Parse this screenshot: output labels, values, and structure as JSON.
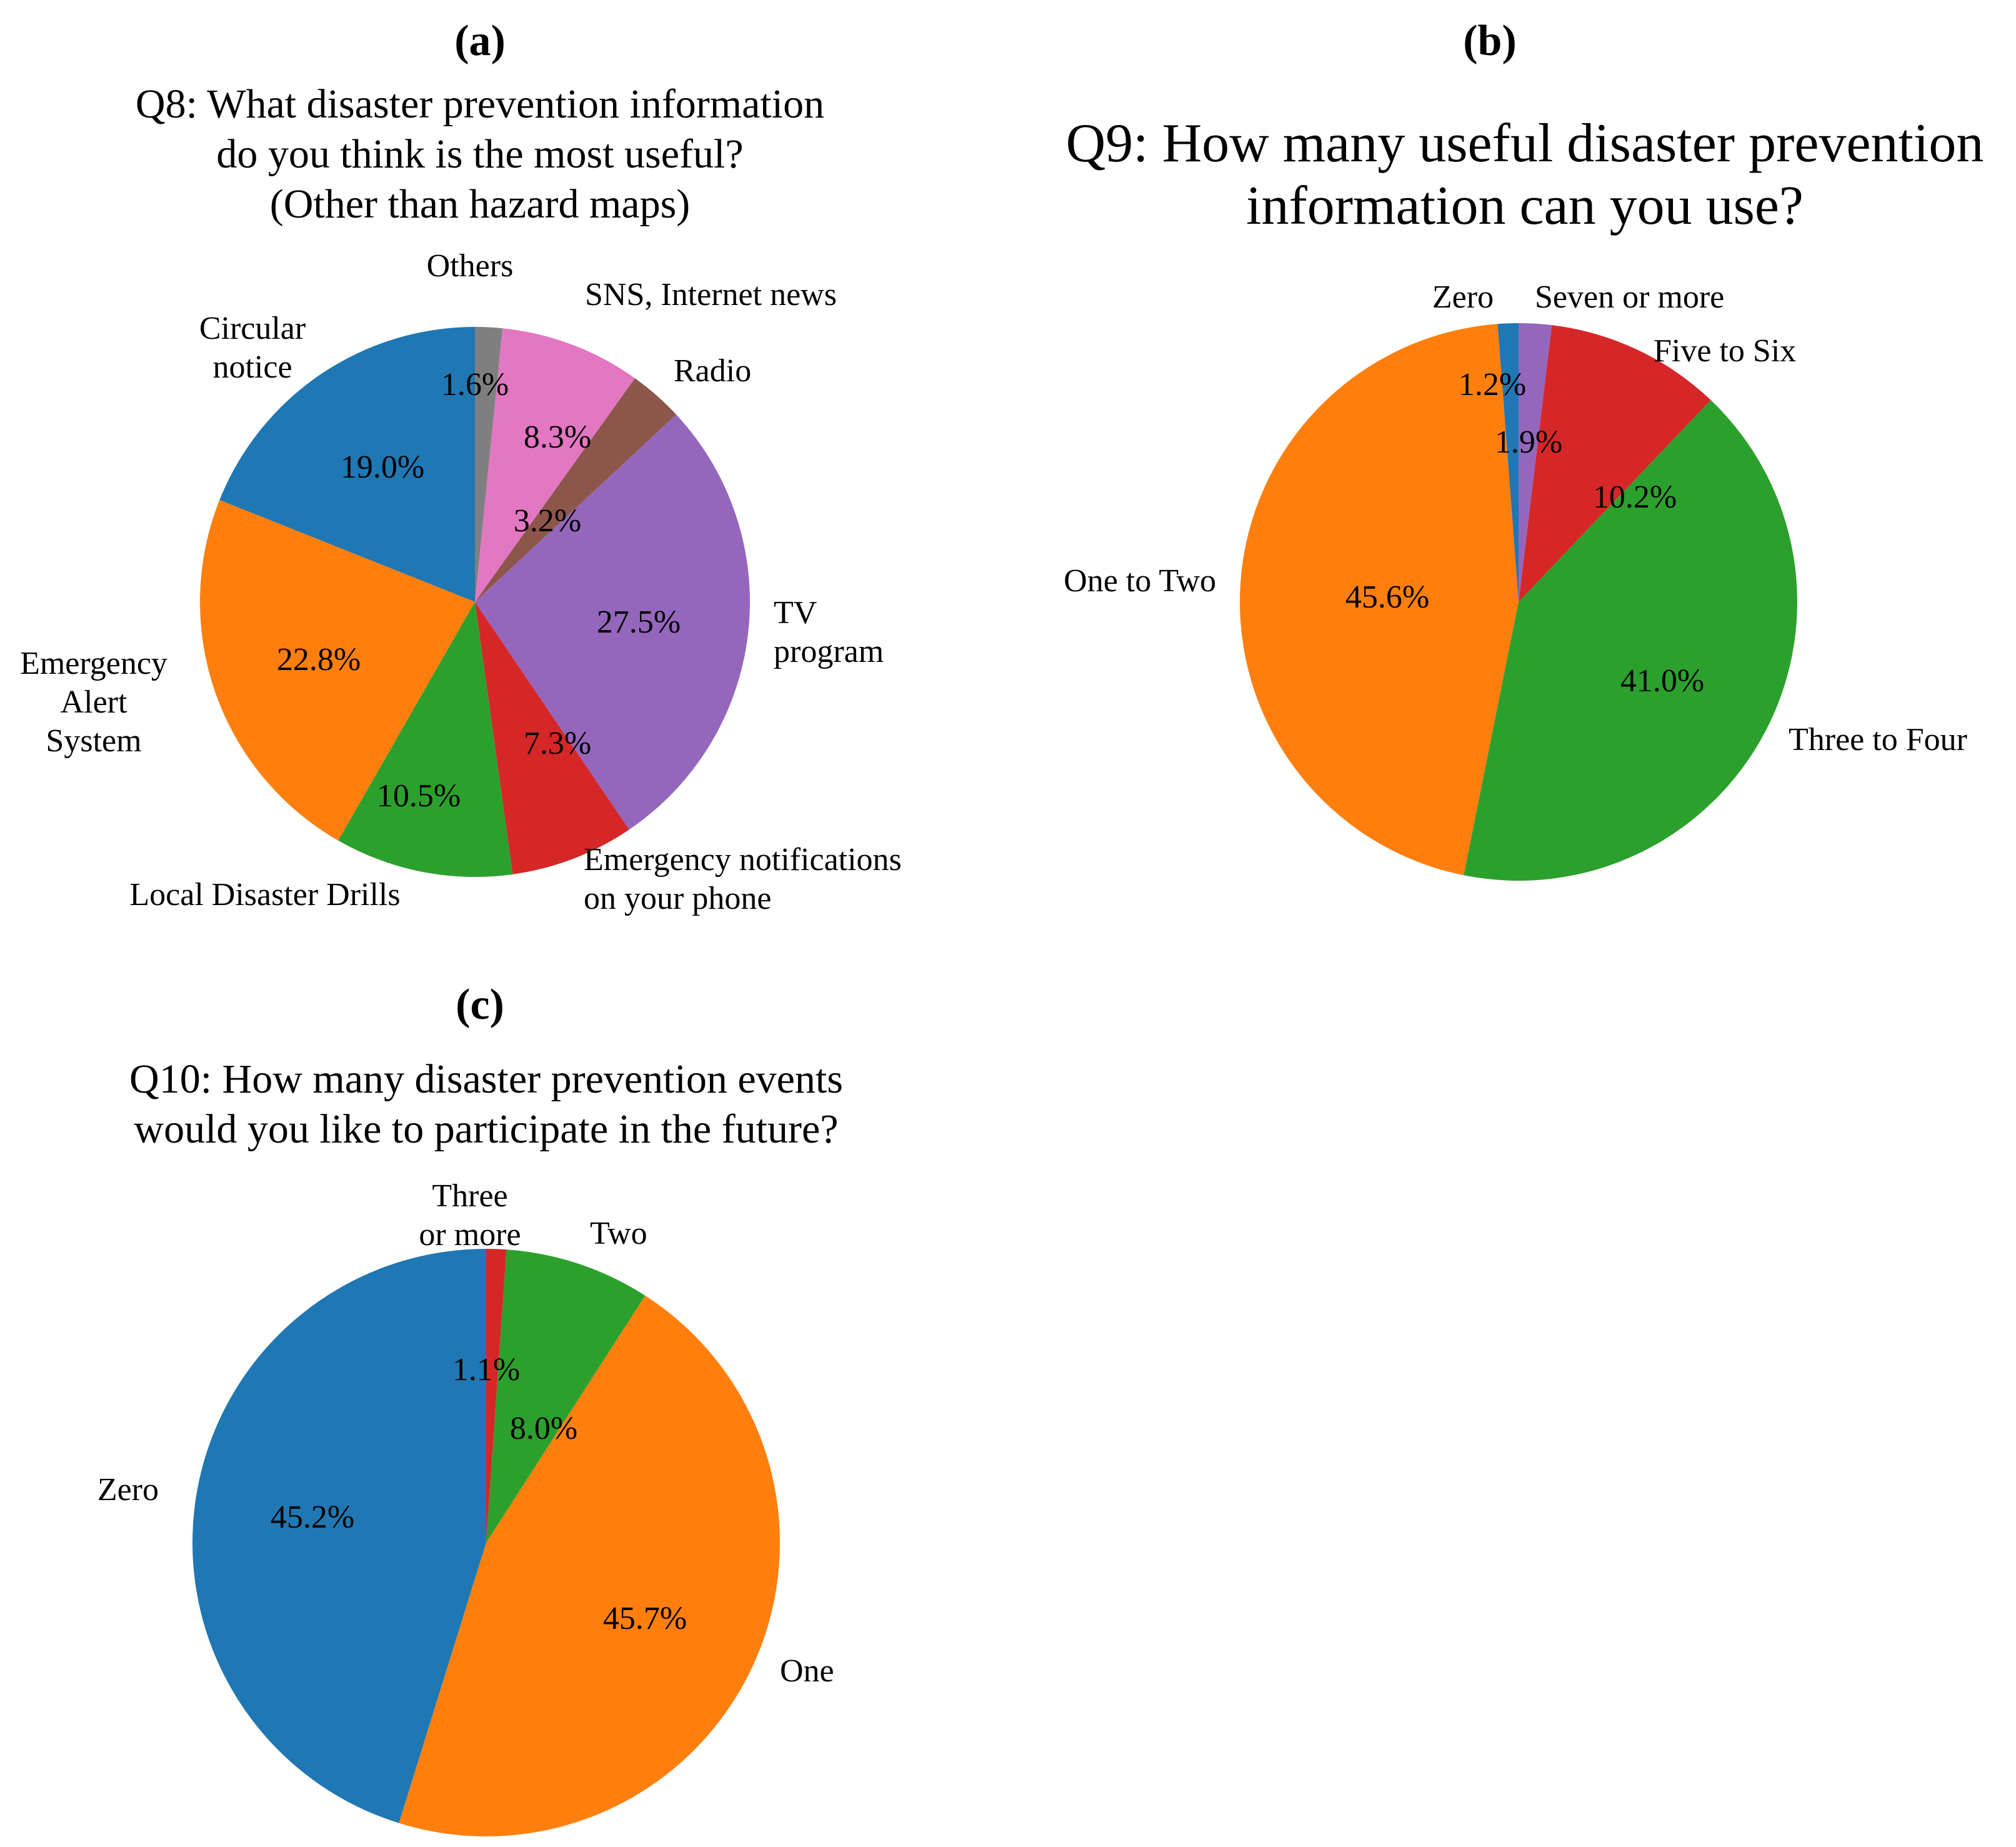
{
  "chart_data": [
    {
      "type": "pie",
      "panel": "(a)",
      "title_lines": [
        "Q8: What disaster prevention information",
        "do you think is the most useful?",
        "(Other than hazard maps)"
      ],
      "slices": [
        {
          "label_lines": [
            "Circular",
            "notice"
          ],
          "value": 19.0,
          "pct_label": "19.0%",
          "color": "#1f77b4"
        },
        {
          "label_lines": [
            "Emergency",
            "Alert",
            "System"
          ],
          "value": 22.8,
          "pct_label": "22.8%",
          "color": "#ff7f0e"
        },
        {
          "label_lines": [
            "Local Disaster Drills"
          ],
          "value": 10.5,
          "pct_label": "10.5%",
          "color": "#2ca02c"
        },
        {
          "label_lines": [
            "Emergency notifications",
            "on your phone"
          ],
          "value": 7.3,
          "pct_label": "7.3%",
          "color": "#d62728"
        },
        {
          "label_lines": [
            "TV",
            "program"
          ],
          "value": 27.5,
          "pct_label": "27.5%",
          "color": "#9467bd"
        },
        {
          "label_lines": [
            "Radio"
          ],
          "value": 3.2,
          "pct_label": "3.2%",
          "color": "#8c564b"
        },
        {
          "label_lines": [
            "SNS, Internet news"
          ],
          "value": 8.3,
          "pct_label": "8.3%",
          "color": "#e377c2"
        },
        {
          "label_lines": [
            "Others"
          ],
          "value": 1.6,
          "pct_label": "1.6%",
          "color": "#7f7f7f"
        }
      ]
    },
    {
      "type": "pie",
      "panel": "(b)",
      "title_lines": [
        "Q9: How many useful disaster prevention",
        "information can you use?"
      ],
      "slices": [
        {
          "label_lines": [
            "Zero"
          ],
          "value": 1.2,
          "pct_label": "1.2%",
          "color": "#1f77b4"
        },
        {
          "label_lines": [
            "One to Two"
          ],
          "value": 45.6,
          "pct_label": "45.6%",
          "color": "#ff7f0e"
        },
        {
          "label_lines": [
            "Three to Four"
          ],
          "value": 41.0,
          "pct_label": "41.0%",
          "color": "#2ca02c"
        },
        {
          "label_lines": [
            "Five to Six"
          ],
          "value": 10.2,
          "pct_label": "10.2%",
          "color": "#d62728"
        },
        {
          "label_lines": [
            "Seven or more"
          ],
          "value": 1.9,
          "pct_label": "1.9%",
          "color": "#9467bd"
        }
      ]
    },
    {
      "type": "pie",
      "panel": "(c)",
      "title_lines": [
        "Q10: How many disaster prevention events",
        "would you like to participate in the future?"
      ],
      "slices": [
        {
          "label_lines": [
            "Zero"
          ],
          "value": 45.2,
          "pct_label": "45.2%",
          "color": "#1f77b4"
        },
        {
          "label_lines": [
            "One"
          ],
          "value": 45.7,
          "pct_label": "45.7%",
          "color": "#ff7f0e"
        },
        {
          "label_lines": [
            "Two"
          ],
          "value": 8.0,
          "pct_label": "8.0%",
          "color": "#2ca02c"
        },
        {
          "label_lines": [
            "Three",
            "or more"
          ],
          "value": 1.1,
          "pct_label": "1.1%",
          "color": "#d62728"
        }
      ]
    }
  ]
}
